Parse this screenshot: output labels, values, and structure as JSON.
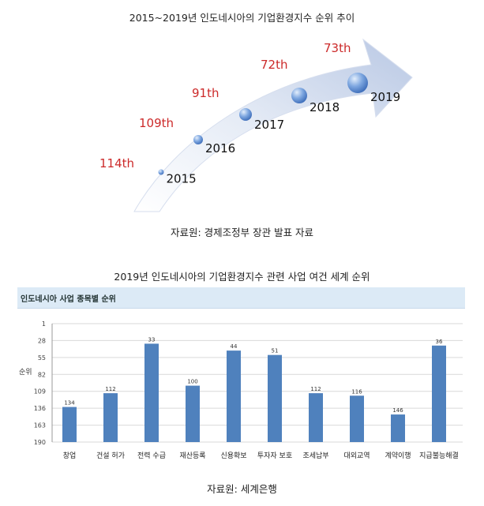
{
  "top": {
    "title": "2015~2019년 인도네시아의 기업환경지수 순위 추이",
    "source": "자료원: 경제조정부 장관 발표 자료"
  },
  "bottom": {
    "title": "2019년 인도네시아의 기업환경지수 관련 사업 여건 세계 순위",
    "panel_title": "인도네시아 사업 종목별 순위",
    "source": "자료원: 세계은행"
  },
  "colors": {
    "rank_label": "#cc2a2a",
    "bar": "#4f81bd",
    "panel_header": "#dceaf6",
    "bubble": "#5b8fd6"
  },
  "chart_data": [
    {
      "type": "line",
      "title": "2015~2019년 인도네시아의 기업환경지수 순위 추이",
      "x": [
        "2015",
        "2016",
        "2017",
        "2018",
        "2019"
      ],
      "y": [
        114,
        109,
        91,
        72,
        73
      ],
      "rank_labels": [
        "114th",
        "109th",
        "91th",
        "72th",
        "73th"
      ]
    },
    {
      "type": "bar",
      "title": "인도네시아 사업 종목별 순위",
      "ylabel": "순위",
      "y_inverted": true,
      "ylim": [
        1,
        190
      ],
      "yticks": [
        1,
        28,
        55,
        82,
        109,
        136,
        163,
        190
      ],
      "categories": [
        "창업",
        "건설 허가",
        "전력 수급",
        "재산등록",
        "신용확보",
        "투자자 보호",
        "조세납부",
        "대외교역",
        "계약이행",
        "지급불능해결"
      ],
      "values": [
        134,
        112,
        33,
        100,
        44,
        51,
        112,
        116,
        146,
        36
      ]
    }
  ]
}
